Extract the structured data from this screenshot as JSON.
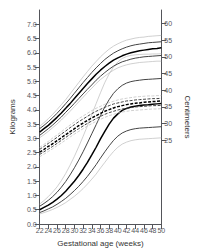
{
  "chart_data": {
    "type": "line",
    "xlabel": "Gestational age (weeks)",
    "ylabel": "Kilograms",
    "y2label": "Centimeters",
    "x": [
      22,
      23,
      24,
      25,
      26,
      27,
      28,
      29,
      30,
      31,
      32,
      33,
      34,
      35,
      36,
      37,
      38,
      39,
      40,
      41,
      42,
      43,
      44,
      45,
      46,
      47,
      48,
      49,
      50
    ],
    "series": [
      {
        "color": "#bbbbbb",
        "line_style": "solid",
        "values": [
          0.7,
          0.82,
          0.96,
          1.12,
          1.3,
          1.52,
          1.77,
          2.06,
          2.37,
          2.71,
          3.07,
          3.44,
          3.83,
          4.22,
          4.6,
          4.96,
          5.26,
          5.5,
          5.68,
          5.8,
          5.87,
          5.91,
          5.93,
          5.94,
          5.95,
          5.95,
          5.96,
          5.96,
          5.97
        ]
      },
      {
        "color": "#444444",
        "line_style": "solid",
        "values": [
          0.62,
          0.72,
          0.83,
          0.96,
          1.11,
          1.29,
          1.49,
          1.72,
          1.97,
          2.24,
          2.53,
          2.84,
          3.16,
          3.48,
          3.8,
          4.1,
          4.36,
          4.58,
          4.74,
          4.86,
          4.94,
          4.99,
          5.02,
          5.04,
          5.06,
          5.07,
          5.08,
          5.09,
          5.1
        ]
      },
      {
        "color": "#000000",
        "line_style": "solid",
        "values": [
          0.5,
          0.58,
          0.66,
          0.76,
          0.87,
          1.0,
          1.15,
          1.32,
          1.5,
          1.7,
          1.92,
          2.16,
          2.42,
          2.69,
          2.98,
          3.25,
          3.5,
          3.71,
          3.86,
          3.98,
          4.05,
          4.1,
          4.13,
          4.15,
          4.17,
          4.18,
          4.2,
          4.21,
          4.22
        ]
      },
      {
        "color": "#444444",
        "line_style": "solid",
        "values": [
          0.4,
          0.46,
          0.53,
          0.6,
          0.69,
          0.79,
          0.9,
          1.03,
          1.17,
          1.32,
          1.49,
          1.67,
          1.87,
          2.08,
          2.31,
          2.53,
          2.74,
          2.93,
          3.08,
          3.19,
          3.26,
          3.31,
          3.34,
          3.36,
          3.37,
          3.38,
          3.39,
          3.4,
          3.41
        ]
      },
      {
        "color": "#bbbbbb",
        "line_style": "solid",
        "values": [
          0.35,
          0.4,
          0.45,
          0.51,
          0.58,
          0.66,
          0.75,
          0.86,
          0.97,
          1.1,
          1.24,
          1.4,
          1.57,
          1.75,
          1.96,
          2.16,
          2.36,
          2.54,
          2.69,
          2.8,
          2.87,
          2.92,
          2.95,
          2.97,
          2.98,
          2.99,
          3.0,
          3.01,
          3.02
        ]
      },
      {
        "color": "#bbbbbb",
        "line_style": "solid",
        "axis": "y2",
        "values": [
          29.2,
          30.3,
          31.5,
          32.8,
          34.2,
          35.7,
          37.2,
          38.9,
          40.6,
          42.3,
          44.0,
          45.6,
          47.2,
          48.6,
          50.0,
          51.2,
          52.3,
          53.2,
          53.9,
          54.5,
          55.0,
          55.3,
          55.6,
          55.8,
          55.9,
          56.1,
          56.2,
          56.3,
          56.4
        ]
      },
      {
        "color": "#444444",
        "line_style": "solid",
        "axis": "y2",
        "values": [
          28.5,
          29.5,
          30.6,
          31.8,
          33.1,
          34.5,
          36.0,
          37.5,
          39.1,
          40.7,
          42.3,
          43.8,
          45.3,
          46.7,
          48.0,
          49.2,
          50.2,
          51.1,
          51.8,
          52.4,
          52.9,
          53.3,
          53.6,
          53.8,
          54.0,
          54.2,
          54.3,
          54.4,
          54.5
        ]
      },
      {
        "color": "#000000",
        "line_style": "solid",
        "axis": "y2",
        "values": [
          27.5,
          28.5,
          29.5,
          30.7,
          31.9,
          33.2,
          34.6,
          36.0,
          37.5,
          39.0,
          40.5,
          42.0,
          43.4,
          44.8,
          46.0,
          47.1,
          48.1,
          49.0,
          49.7,
          50.3,
          50.8,
          51.2,
          51.5,
          51.8,
          52.0,
          52.2,
          52.4,
          52.5,
          52.7
        ]
      },
      {
        "color": "#444444",
        "line_style": "solid",
        "axis": "y2",
        "values": [
          26.5,
          27.5,
          28.5,
          29.6,
          30.8,
          32.0,
          33.4,
          34.7,
          36.1,
          37.5,
          38.9,
          40.3,
          41.6,
          43.0,
          44.2,
          45.3,
          46.3,
          47.2,
          47.9,
          48.5,
          48.9,
          49.3,
          49.6,
          49.8,
          50.0,
          50.1,
          50.2,
          50.3,
          50.4
        ]
      },
      {
        "color": "#bbbbbb",
        "line_style": "solid",
        "axis": "y2",
        "values": [
          25.8,
          26.7,
          27.7,
          28.8,
          29.9,
          31.1,
          32.4,
          33.7,
          35.1,
          36.5,
          37.9,
          39.3,
          40.6,
          42.0,
          43.2,
          44.2,
          45.2,
          46.0,
          46.7,
          47.2,
          47.6,
          47.9,
          48.1,
          48.3,
          48.4,
          48.5,
          48.6,
          48.7,
          48.7
        ]
      },
      {
        "color": "#bbbbbb",
        "line_style": "dashed",
        "axis": "y2",
        "values": [
          22.9,
          23.8,
          24.7,
          25.7,
          26.6,
          27.6,
          28.6,
          29.6,
          30.5,
          31.5,
          32.3,
          33.1,
          33.9,
          34.6,
          35.2,
          35.8,
          36.3,
          36.7,
          37.1,
          37.4,
          37.6,
          37.8,
          38.0,
          38.1,
          38.2,
          38.3,
          38.3,
          38.4,
          38.4
        ]
      },
      {
        "color": "#444444",
        "line_style": "dashed",
        "axis": "y2",
        "values": [
          22.3,
          23.2,
          24.1,
          25.0,
          25.9,
          26.9,
          27.8,
          28.8,
          29.7,
          30.6,
          31.4,
          32.2,
          33.0,
          33.7,
          34.3,
          34.9,
          35.4,
          35.9,
          36.2,
          36.5,
          36.8,
          36.9,
          37.1,
          37.2,
          37.3,
          37.4,
          37.5,
          37.5,
          37.6
        ]
      },
      {
        "color": "#000000",
        "line_style": "dashed",
        "axis": "y2",
        "values": [
          21.5,
          22.3,
          23.2,
          24.0,
          24.9,
          25.8,
          26.7,
          27.6,
          28.5,
          29.4,
          30.2,
          31.0,
          31.7,
          32.4,
          33.1,
          33.7,
          34.2,
          34.7,
          35.1,
          35.4,
          35.7,
          35.9,
          36.1,
          36.2,
          36.4,
          36.5,
          36.6,
          36.7,
          36.8
        ]
      },
      {
        "color": "#444444",
        "line_style": "dashed",
        "axis": "y2",
        "values": [
          20.8,
          21.6,
          22.4,
          23.2,
          24.1,
          25.0,
          25.9,
          26.8,
          27.7,
          28.5,
          29.3,
          30.1,
          30.8,
          31.5,
          32.2,
          32.8,
          33.3,
          33.7,
          34.1,
          34.4,
          34.6,
          34.8,
          35.0,
          35.1,
          35.2,
          35.3,
          35.4,
          35.4,
          35.5
        ]
      },
      {
        "color": "#bbbbbb",
        "line_style": "dashed",
        "axis": "y2",
        "values": [
          20.1,
          20.9,
          21.7,
          22.5,
          23.4,
          24.2,
          25.1,
          26.0,
          26.9,
          27.7,
          28.5,
          29.3,
          30.0,
          30.7,
          31.3,
          31.9,
          32.4,
          32.8,
          33.2,
          33.5,
          33.7,
          33.9,
          34.0,
          34.1,
          34.2,
          34.3,
          34.4,
          34.4,
          34.5
        ]
      }
    ],
    "xlim": [
      22,
      50
    ],
    "ylim": [
      0.0,
      7.5
    ],
    "y2lim": [
      0.0,
      64.0
    ],
    "xticks": [
      22,
      24,
      26,
      28,
      30,
      32,
      34,
      36,
      38,
      40,
      42,
      44,
      46,
      48,
      50
    ],
    "yticks": [
      {
        "value": 0.0,
        "label": "0.0"
      },
      0.5,
      {
        "value": 1.0,
        "label": "1.0"
      },
      1.5,
      {
        "value": 2.0,
        "label": "2.0"
      },
      2.5,
      {
        "value": 3.0,
        "label": "3.0"
      },
      3.5,
      {
        "value": 4.0,
        "label": "4.0"
      },
      4.5,
      {
        "value": 5.0,
        "label": "5.0"
      },
      5.5,
      {
        "value": 6.0,
        "label": "6.0"
      },
      6.5,
      {
        "value": 7.0,
        "label": "7.0"
      }
    ],
    "y2ticks": [
      25,
      30,
      35,
      40,
      45,
      50,
      55,
      60
    ],
    "grid": false
  }
}
